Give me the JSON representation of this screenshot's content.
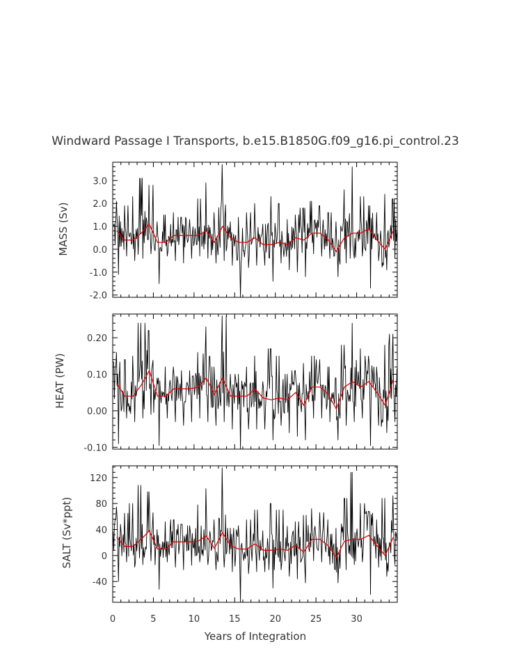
{
  "chart_data": {
    "type": "line",
    "title": "Windward Passage I Transports, b.e15.B1850G.f09_g16.pi_control.23",
    "xlabel": "Years of Integration",
    "xlim": [
      0,
      35
    ],
    "x_ticks": [
      0,
      5,
      10,
      15,
      20,
      25,
      30
    ],
    "x_tick_labels": [
      "0",
      "5",
      "10",
      "15",
      "20",
      "25",
      "30"
    ],
    "raw_color": "#000000",
    "mean_color": "#e00000",
    "panels": [
      {
        "id": "mass",
        "ylabel": "MASS (Sv)",
        "ylim": [
          -2.1,
          3.8
        ],
        "y_ticks": [
          -2.0,
          -1.0,
          0.0,
          1.0,
          2.0,
          3.0
        ],
        "y_tick_labels": [
          "-2.0",
          "-1.0",
          "0.0",
          "1.0",
          "2.0",
          "3.0"
        ],
        "mean_years": [
          0.5,
          1.5,
          2.5,
          3.5,
          4.5,
          5.5,
          6.5,
          7.5,
          8.5,
          9.5,
          10.5,
          11.5,
          12.5,
          13.5,
          14.5,
          15.5,
          16.5,
          17.5,
          18.5,
          19.5,
          20.5,
          21.5,
          22.5,
          23.5,
          24.5,
          25.5,
          26.5,
          27.5,
          28.5,
          29.5,
          30.5,
          31.5,
          32.5,
          33.5,
          34.5
        ],
        "mean_values": [
          0.8,
          0.4,
          0.4,
          0.7,
          1.1,
          0.3,
          0.3,
          0.6,
          0.6,
          0.6,
          0.6,
          0.8,
          0.3,
          1.0,
          0.5,
          0.3,
          0.3,
          0.5,
          0.2,
          0.2,
          0.3,
          0.2,
          0.5,
          0.4,
          0.7,
          0.7,
          0.4,
          -0.1,
          0.5,
          0.7,
          0.7,
          0.9,
          0.4,
          0.0,
          0.8
        ],
        "annual_spikes": [
          2.1,
          1.9,
          2.3,
          3.1,
          2.8,
          1.2,
          1.5,
          1.6,
          1.4,
          1.3,
          2.2,
          2.9,
          1.6,
          3.7,
          1.2,
          1.4,
          1.6,
          2.0,
          1.1,
          2.3,
          2.0,
          1.3,
          1.5,
          1.8,
          2.1,
          1.9,
          1.6,
          1.2,
          2.6,
          3.6,
          2.3,
          1.9,
          1.6,
          2.4,
          2.2
        ],
        "annual_dips": [
          -1.1,
          -0.3,
          -0.5,
          -0.4,
          -0.2,
          -1.5,
          -0.3,
          -0.5,
          -0.6,
          -0.4,
          -0.3,
          -0.4,
          -0.6,
          -0.5,
          -0.7,
          -2.1,
          -0.8,
          -0.7,
          -0.7,
          -1.4,
          -0.6,
          -0.9,
          -1.0,
          -1.2,
          -0.2,
          -0.3,
          -0.4,
          -1.2,
          -0.6,
          -0.4,
          -0.3,
          -1.7,
          -0.5,
          -0.9,
          -0.4
        ]
      },
      {
        "id": "heat",
        "ylabel": "HEAT (PW)",
        "ylim": [
          -0.105,
          0.265
        ],
        "y_ticks": [
          -0.1,
          0.0,
          0.1,
          0.2
        ],
        "y_tick_labels": [
          "-0.10",
          "0.00",
          "0.10",
          "0.20"
        ],
        "mean_years": [
          0.5,
          1.5,
          2.5,
          3.5,
          4.5,
          5.5,
          6.5,
          7.5,
          8.5,
          9.5,
          10.5,
          11.5,
          12.5,
          13.5,
          14.5,
          15.5,
          16.5,
          17.5,
          18.5,
          19.5,
          20.5,
          21.5,
          22.5,
          23.5,
          24.5,
          25.5,
          26.5,
          27.5,
          28.5,
          29.5,
          30.5,
          31.5,
          32.5,
          33.5,
          34.5
        ],
        "mean_values": [
          0.075,
          0.04,
          0.04,
          0.07,
          0.11,
          0.04,
          0.04,
          0.06,
          0.06,
          0.06,
          0.065,
          0.09,
          0.045,
          0.09,
          0.04,
          0.04,
          0.04,
          0.06,
          0.035,
          0.03,
          0.035,
          0.03,
          0.05,
          0.015,
          0.065,
          0.065,
          0.045,
          0.005,
          0.065,
          0.08,
          0.065,
          0.08,
          0.05,
          0.015,
          0.085
        ],
        "annual_spikes": [
          0.16,
          0.14,
          0.15,
          0.24,
          0.22,
          0.09,
          0.12,
          0.12,
          0.11,
          0.11,
          0.16,
          0.23,
          0.12,
          0.26,
          0.1,
          0.1,
          0.12,
          0.15,
          0.08,
          0.17,
          0.15,
          0.1,
          0.11,
          0.13,
          0.15,
          0.14,
          0.12,
          0.09,
          0.18,
          0.24,
          0.17,
          0.15,
          0.12,
          0.18,
          0.21
        ],
        "annual_dips": [
          -0.09,
          -0.02,
          -0.03,
          -0.02,
          -0.01,
          -0.095,
          -0.02,
          -0.03,
          -0.04,
          -0.03,
          -0.02,
          -0.03,
          -0.04,
          -0.03,
          -0.05,
          -0.105,
          -0.05,
          -0.05,
          -0.05,
          -0.08,
          -0.04,
          -0.06,
          -0.07,
          -0.08,
          -0.02,
          -0.02,
          -0.03,
          -0.08,
          -0.04,
          -0.03,
          -0.02,
          -0.095,
          -0.04,
          -0.06,
          -0.03
        ]
      },
      {
        "id": "salt",
        "ylabel": "SALT (Sv*ppt)",
        "ylim": [
          -72,
          138
        ],
        "y_ticks": [
          -40,
          0,
          40,
          80,
          120
        ],
        "y_tick_labels": [
          "-40",
          "0",
          "40",
          "80",
          "120"
        ],
        "mean_years": [
          0.5,
          1.5,
          2.5,
          3.5,
          4.5,
          5.5,
          6.5,
          7.5,
          8.5,
          9.5,
          10.5,
          11.5,
          12.5,
          13.5,
          14.5,
          15.5,
          16.5,
          17.5,
          18.5,
          19.5,
          20.5,
          21.5,
          22.5,
          23.5,
          24.5,
          25.5,
          26.5,
          27.5,
          28.5,
          29.5,
          30.5,
          31.5,
          32.5,
          33.5,
          34.5
        ],
        "mean_values": [
          28,
          14,
          14,
          25,
          38,
          10,
          10,
          21,
          21,
          21,
          22,
          30,
          11,
          35,
          15,
          10,
          10,
          18,
          8,
          8,
          10,
          8,
          16,
          5,
          25,
          25,
          15,
          -3,
          22,
          25,
          25,
          31,
          15,
          0,
          28
        ],
        "annual_spikes": [
          75,
          65,
          80,
          108,
          98,
          40,
          52,
          55,
          48,
          46,
          78,
          103,
          55,
          135,
          42,
          46,
          55,
          70,
          38,
          80,
          70,
          45,
          52,
          62,
          72,
          66,
          55,
          42,
          88,
          128,
          80,
          68,
          55,
          88,
          92
        ],
        "annual_dips": [
          -40,
          -10,
          -18,
          -14,
          -8,
          -52,
          -10,
          -18,
          -22,
          -15,
          -10,
          -14,
          -22,
          -18,
          -25,
          -72,
          -28,
          -25,
          -25,
          -50,
          -22,
          -32,
          -36,
          -42,
          -8,
          -10,
          -14,
          -42,
          -22,
          -14,
          -10,
          -60,
          -18,
          -32,
          -14
        ]
      }
    ]
  }
}
